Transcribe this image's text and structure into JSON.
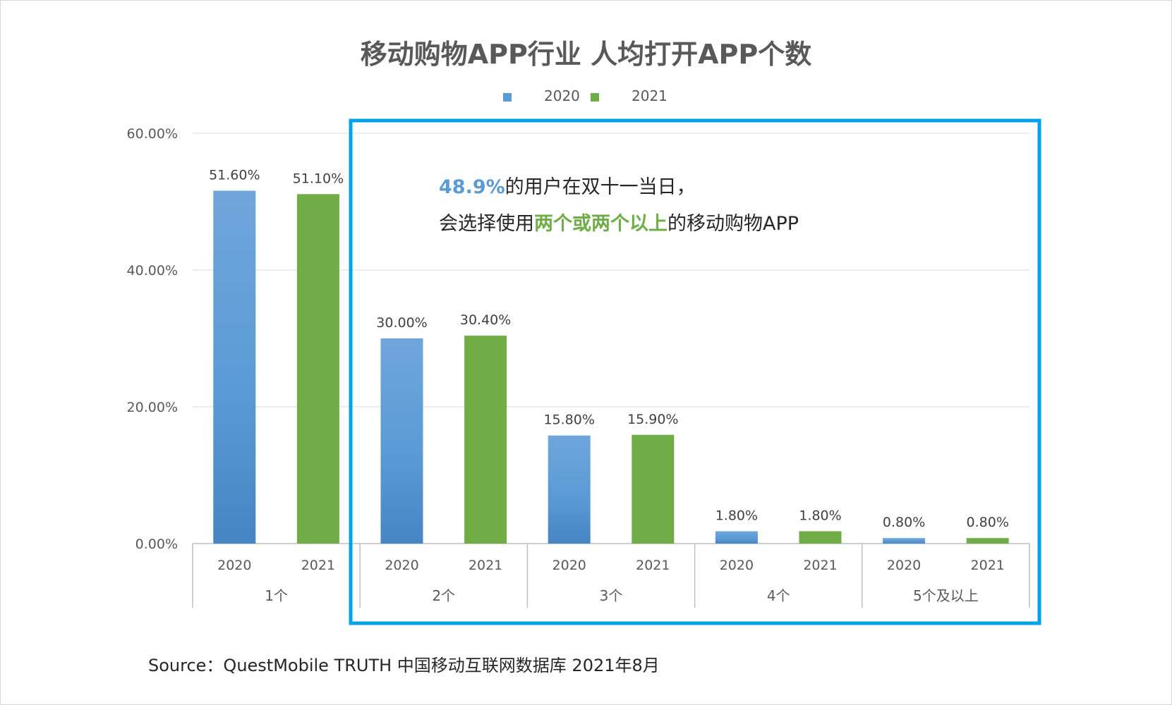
{
  "title": "移动购物APP行业 人均打开APP个数",
  "legend": [
    {
      "label": "2020",
      "color": "#5b9bd5"
    },
    {
      "label": "2021",
      "color": "#70ad47"
    }
  ],
  "callout": {
    "line1_highlight": "48.9%",
    "line1_rest": "的用户在双十一当日，",
    "line2_prefix": "会选择使用",
    "line2_highlight": "两个或两个以上",
    "line2_suffix": "的移动购物APP",
    "box_color": "#00a2e8"
  },
  "source": "Source：QuestMobile TRUTH 中国移动互联网数据库 2021年8月",
  "colors": {
    "series_2020": "#5b9bd5",
    "series_2021": "#70ad47",
    "axis_text": "#595959",
    "grid": "#d9d9d9"
  },
  "chart_data": {
    "type": "bar",
    "categories": [
      "1个",
      "2个",
      "3个",
      "4个",
      "5个及以上"
    ],
    "series": [
      {
        "name": "2020",
        "values": [
          51.6,
          30.0,
          15.8,
          1.8,
          0.8
        ],
        "labels": [
          "51.60%",
          "30.00%",
          "15.80%",
          "1.80%",
          "0.80%"
        ]
      },
      {
        "name": "2021",
        "values": [
          51.1,
          30.4,
          15.9,
          1.8,
          0.8
        ],
        "labels": [
          "51.10%",
          "30.40%",
          "15.90%",
          "1.80%",
          "0.80%"
        ]
      }
    ],
    "ylim": [
      0,
      60
    ],
    "yticks": [
      "0.00%",
      "20.00%",
      "40.00%",
      "60.00%"
    ],
    "grid": true,
    "legend_position": "top"
  }
}
